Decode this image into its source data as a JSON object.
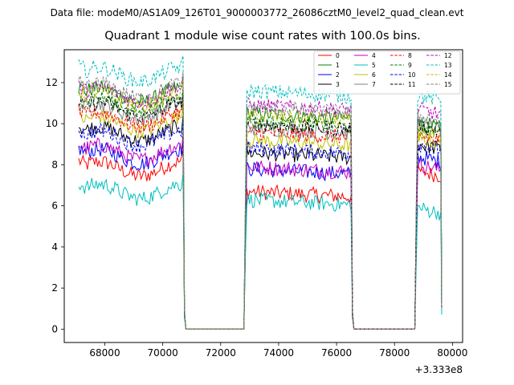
{
  "chart_data": {
    "type": "line",
    "suptitle": "Data file: modeM0/AS1A09_126T01_9000003772_26086cztM0_level2_quad_clean.evt",
    "title": "Quadrant 1 module wise count rates with 100.0s bins.",
    "xlabel": "",
    "ylabel": "",
    "x_offset_label": "+3.333e8",
    "xlim": [
      66600,
      80350
    ],
    "ylim": [
      -0.65,
      13.6
    ],
    "xticks": [
      68000,
      70000,
      72000,
      74000,
      76000,
      78000,
      80000
    ],
    "xtick_labels": [
      "68000",
      "70000",
      "72000",
      "74000",
      "76000",
      "78000",
      "80000"
    ],
    "yticks": [
      0,
      2,
      4,
      6,
      8,
      10,
      12
    ],
    "ytick_labels": [
      "0",
      "2",
      "4",
      "6",
      "8",
      "10",
      "12"
    ],
    "grid": false,
    "legend_position": "upper-right",
    "segments": [
      {
        "start": 67100,
        "end": 70700
      },
      {
        "start": 72900,
        "end": 76500
      },
      {
        "start": 78800,
        "end": 79600
      }
    ],
    "gaps": [
      {
        "start": 70800,
        "end": 72800
      },
      {
        "start": 76600,
        "end": 78700
      }
    ],
    "series": [
      {
        "name": "0",
        "color": "#ff0000",
        "dash": false,
        "levels": [
          7.8,
          6.7,
          7.7
        ]
      },
      {
        "name": "1",
        "color": "#008000",
        "dash": false,
        "levels": [
          11.4,
          10.5,
          10.0
        ]
      },
      {
        "name": "2",
        "color": "#0000ff",
        "dash": false,
        "levels": [
          8.4,
          7.8,
          8.4
        ]
      },
      {
        "name": "3",
        "color": "#000000",
        "dash": false,
        "levels": [
          9.5,
          8.6,
          9.0
        ]
      },
      {
        "name": "4",
        "color": "#bf00bf",
        "dash": false,
        "levels": [
          8.6,
          7.9,
          8.0
        ]
      },
      {
        "name": "5",
        "color": "#00bfbf",
        "dash": false,
        "levels": [
          6.7,
          6.3,
          5.9
        ]
      },
      {
        "name": "6",
        "color": "#bfbf00",
        "dash": false,
        "levels": [
          10.0,
          9.2,
          9.3
        ]
      },
      {
        "name": "7",
        "color": "#808080",
        "dash": false,
        "levels": [
          10.6,
          9.8,
          10.0
        ]
      },
      {
        "name": "8",
        "color": "#ff0000",
        "dash": true,
        "levels": [
          10.2,
          9.6,
          9.4
        ]
      },
      {
        "name": "9",
        "color": "#008000",
        "dash": true,
        "levels": [
          10.9,
          10.1,
          9.9
        ]
      },
      {
        "name": "10",
        "color": "#0000ff",
        "dash": true,
        "levels": [
          9.3,
          8.8,
          9.0
        ]
      },
      {
        "name": "11",
        "color": "#000000",
        "dash": true,
        "levels": [
          10.7,
          10.0,
          9.9
        ]
      },
      {
        "name": "12",
        "color": "#bf00bf",
        "dash": true,
        "levels": [
          11.4,
          10.9,
          10.7
        ]
      },
      {
        "name": "13",
        "color": "#00bfbf",
        "dash": true,
        "levels": [
          12.4,
          11.6,
          11.4
        ]
      },
      {
        "name": "14",
        "color": "#bfbf00",
        "dash": true,
        "levels": [
          11.2,
          10.4,
          9.6
        ]
      },
      {
        "name": "15",
        "color": "#808080",
        "dash": true,
        "levels": [
          11.6,
          10.8,
          10.4
        ]
      }
    ]
  }
}
